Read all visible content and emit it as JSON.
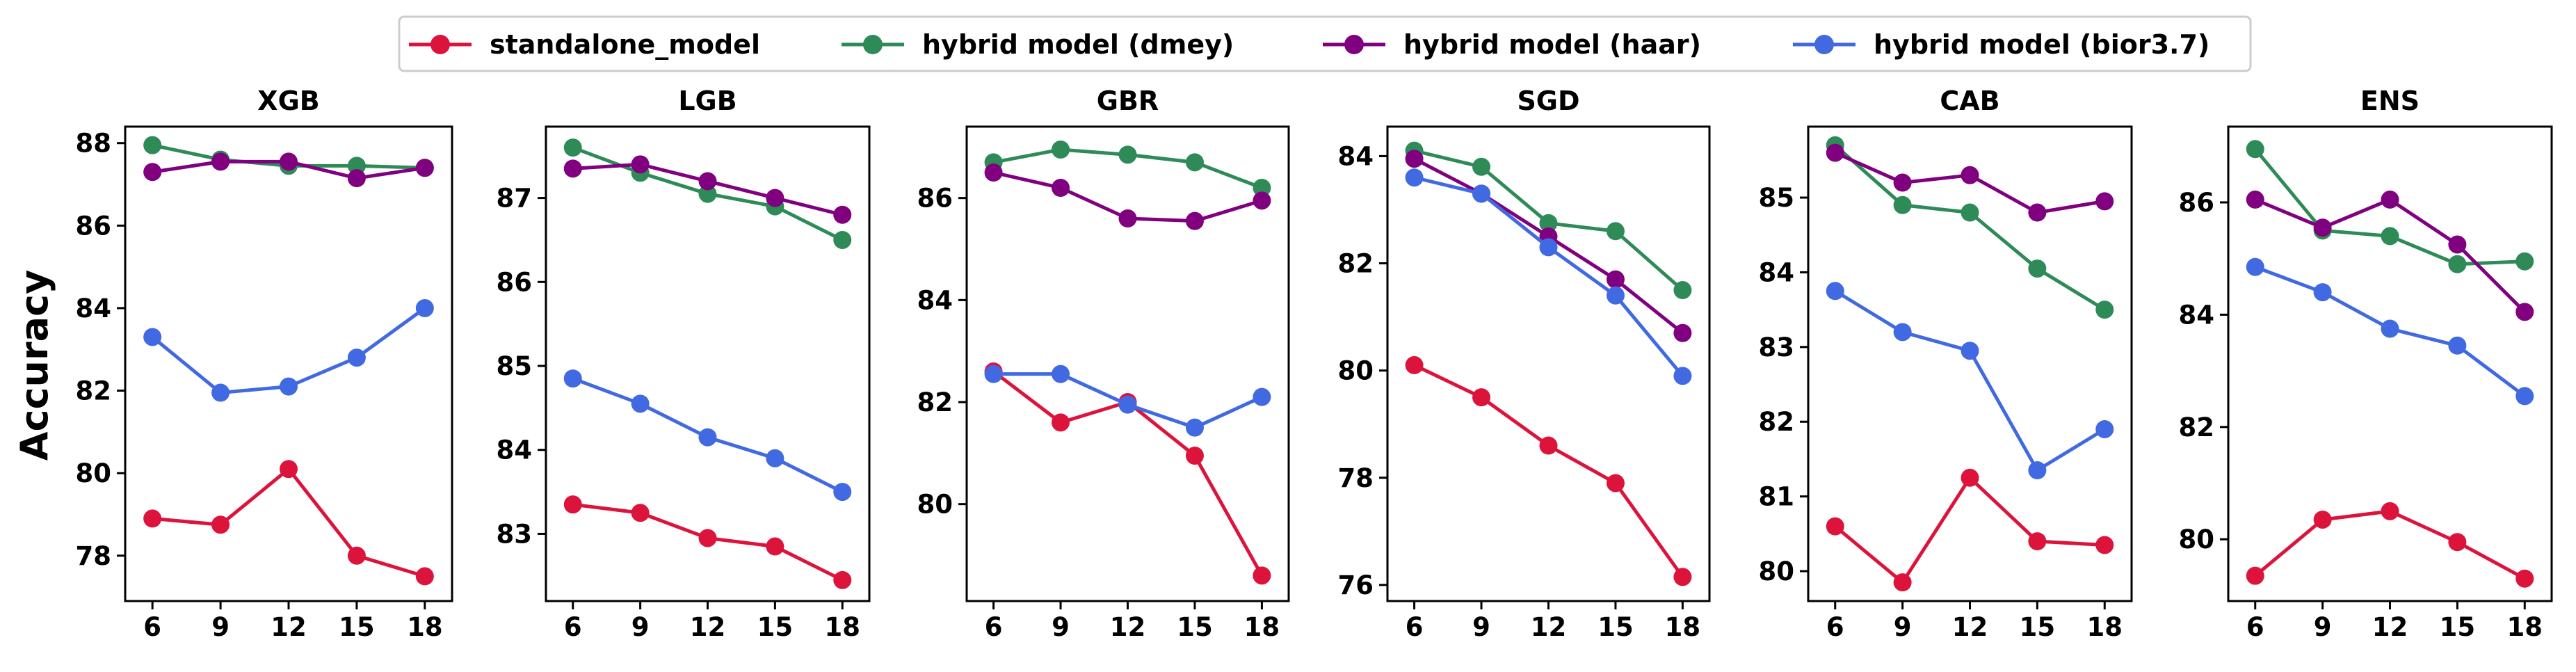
{
  "legend": [
    {
      "label": "standalone_model",
      "color": "#dc143c"
    },
    {
      "label": "hybrid model (dmey)",
      "color": "#2e8b57"
    },
    {
      "label": "hybrid model (haar)",
      "color": "#800080"
    },
    {
      "label": "hybrid model (bior3.7)",
      "color": "#4169e1"
    }
  ],
  "ylabel": "Accuracy",
  "chart_data": [
    {
      "type": "line",
      "title": "XGB",
      "x": [
        6,
        9,
        12,
        15,
        18
      ],
      "ylim": [
        76.9,
        88.4
      ],
      "yticks": [
        78,
        80,
        82,
        84,
        86,
        88
      ],
      "series": [
        {
          "name": "standalone_model",
          "color": "#dc143c",
          "values": [
            78.9,
            78.75,
            80.1,
            78.0,
            77.5
          ]
        },
        {
          "name": "hybrid model (dmey)",
          "color": "#2e8b57",
          "values": [
            87.95,
            87.6,
            87.45,
            87.45,
            87.4
          ]
        },
        {
          "name": "hybrid model (haar)",
          "color": "#800080",
          "values": [
            87.3,
            87.55,
            87.55,
            87.15,
            87.4
          ]
        },
        {
          "name": "hybrid model (bior3.7)",
          "color": "#4169e1",
          "values": [
            83.3,
            81.95,
            82.1,
            82.8,
            84.0
          ]
        }
      ]
    },
    {
      "type": "line",
      "title": "LGB",
      "x": [
        6,
        9,
        12,
        15,
        18
      ],
      "ylim": [
        82.2,
        87.85
      ],
      "yticks": [
        83,
        84,
        85,
        86,
        87
      ],
      "series": [
        {
          "name": "standalone_model",
          "color": "#dc143c",
          "values": [
            83.35,
            83.25,
            82.95,
            82.85,
            82.45
          ]
        },
        {
          "name": "hybrid model (dmey)",
          "color": "#2e8b57",
          "values": [
            87.6,
            87.3,
            87.05,
            86.9,
            86.5
          ]
        },
        {
          "name": "hybrid model (haar)",
          "color": "#800080",
          "values": [
            87.35,
            87.4,
            87.2,
            87.0,
            86.8
          ]
        },
        {
          "name": "hybrid model (bior3.7)",
          "color": "#4169e1",
          "values": [
            84.85,
            84.55,
            84.15,
            83.9,
            83.5
          ]
        }
      ]
    },
    {
      "type": "line",
      "title": "GBR",
      "x": [
        6,
        9,
        12,
        15,
        18
      ],
      "ylim": [
        78.1,
        87.4
      ],
      "yticks": [
        80,
        82,
        84,
        86
      ],
      "series": [
        {
          "name": "standalone_model",
          "color": "#dc143c",
          "values": [
            82.6,
            81.6,
            82.0,
            80.95,
            78.6
          ]
        },
        {
          "name": "hybrid model (dmey)",
          "color": "#2e8b57",
          "values": [
            86.7,
            86.95,
            86.85,
            86.7,
            86.2
          ]
        },
        {
          "name": "hybrid model (haar)",
          "color": "#800080",
          "values": [
            86.5,
            86.2,
            85.6,
            85.55,
            85.95
          ]
        },
        {
          "name": "hybrid model (bior3.7)",
          "color": "#4169e1",
          "values": [
            82.55,
            82.55,
            81.95,
            81.5,
            82.1
          ]
        }
      ]
    },
    {
      "type": "line",
      "title": "SGD",
      "x": [
        6,
        9,
        12,
        15,
        18
      ],
      "ylim": [
        75.7,
        84.55
      ],
      "yticks": [
        76,
        78,
        80,
        82,
        84
      ],
      "series": [
        {
          "name": "standalone_model",
          "color": "#dc143c",
          "values": [
            80.1,
            79.5,
            78.6,
            77.9,
            76.15
          ]
        },
        {
          "name": "hybrid model (dmey)",
          "color": "#2e8b57",
          "values": [
            84.1,
            83.8,
            82.75,
            82.6,
            81.5
          ]
        },
        {
          "name": "hybrid model (haar)",
          "color": "#800080",
          "values": [
            83.95,
            83.3,
            82.5,
            81.7,
            80.7
          ]
        },
        {
          "name": "hybrid model (bior3.7)",
          "color": "#4169e1",
          "values": [
            83.6,
            83.3,
            82.3,
            81.4,
            79.9
          ]
        }
      ]
    },
    {
      "type": "line",
      "title": "CAB",
      "x": [
        6,
        9,
        12,
        15,
        18
      ],
      "ylim": [
        79.6,
        85.95
      ],
      "yticks": [
        80,
        81,
        82,
        83,
        84,
        85
      ],
      "series": [
        {
          "name": "standalone_model",
          "color": "#dc143c",
          "values": [
            80.6,
            79.85,
            81.25,
            80.4,
            80.35
          ]
        },
        {
          "name": "hybrid model (dmey)",
          "color": "#2e8b57",
          "values": [
            85.7,
            84.9,
            84.8,
            84.05,
            83.5
          ]
        },
        {
          "name": "hybrid model (haar)",
          "color": "#800080",
          "values": [
            85.6,
            85.2,
            85.3,
            84.8,
            84.95
          ]
        },
        {
          "name": "hybrid model (bior3.7)",
          "color": "#4169e1",
          "values": [
            83.75,
            83.2,
            82.95,
            81.35,
            81.9
          ]
        }
      ]
    },
    {
      "type": "line",
      "title": "ENS",
      "x": [
        6,
        9,
        12,
        15,
        18
      ],
      "ylim": [
        78.9,
        87.35
      ],
      "yticks": [
        80,
        82,
        84,
        86
      ],
      "series": [
        {
          "name": "standalone_model",
          "color": "#dc143c",
          "values": [
            79.35,
            80.35,
            80.5,
            79.95,
            79.3
          ]
        },
        {
          "name": "hybrid model (dmey)",
          "color": "#2e8b57",
          "values": [
            86.95,
            85.5,
            85.4,
            84.9,
            84.95
          ]
        },
        {
          "name": "hybrid model (haar)",
          "color": "#800080",
          "values": [
            86.05,
            85.55,
            86.05,
            85.25,
            84.05
          ]
        },
        {
          "name": "hybrid model (bior3.7)",
          "color": "#4169e1",
          "values": [
            84.85,
            84.4,
            83.75,
            83.45,
            82.55
          ]
        }
      ]
    }
  ]
}
